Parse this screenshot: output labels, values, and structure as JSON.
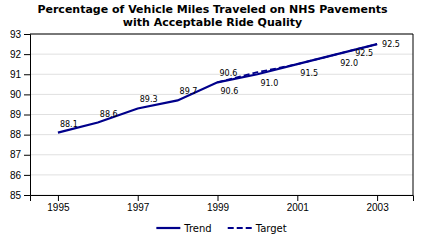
{
  "chart_data": {
    "type": "line",
    "title": "Percentage of Vehicle Miles Traveled on NHS Pavements\nwith Acceptable Ride Quality",
    "series": [
      {
        "name": "Trend",
        "color": "#00008B",
        "line_style": "solid",
        "x": [
          1995,
          1996,
          1997,
          1998,
          1999,
          2000,
          2001,
          2002,
          2003
        ],
        "values": [
          88.1,
          88.6,
          89.3,
          89.7,
          90.6,
          91.0,
          91.5,
          92.0,
          92.5
        ],
        "value_labels": [
          "88.1",
          "88.6",
          "89.3",
          "89.7",
          "90.6",
          "91.0",
          "91.5",
          "92.0",
          "92.5"
        ]
      },
      {
        "name": "Target",
        "color": "#00008B",
        "line_style": "dashed",
        "x": [
          1999,
          2000,
          2001,
          2002,
          2003
        ],
        "values": [
          90.6,
          91.1,
          91.5,
          92.0,
          92.5
        ],
        "value_labels": [
          "90.6",
          null,
          null,
          null,
          "92.5"
        ]
      }
    ],
    "xlim": [
      1994.3,
      2003.9
    ],
    "xticks": [
      1995,
      1997,
      1999,
      2001,
      2003
    ],
    "ylim": [
      85,
      93
    ],
    "yticks": [
      85,
      86,
      87,
      88,
      89,
      90,
      91,
      92,
      93
    ],
    "grid": true,
    "legend": "bottom",
    "data_labels": true
  }
}
